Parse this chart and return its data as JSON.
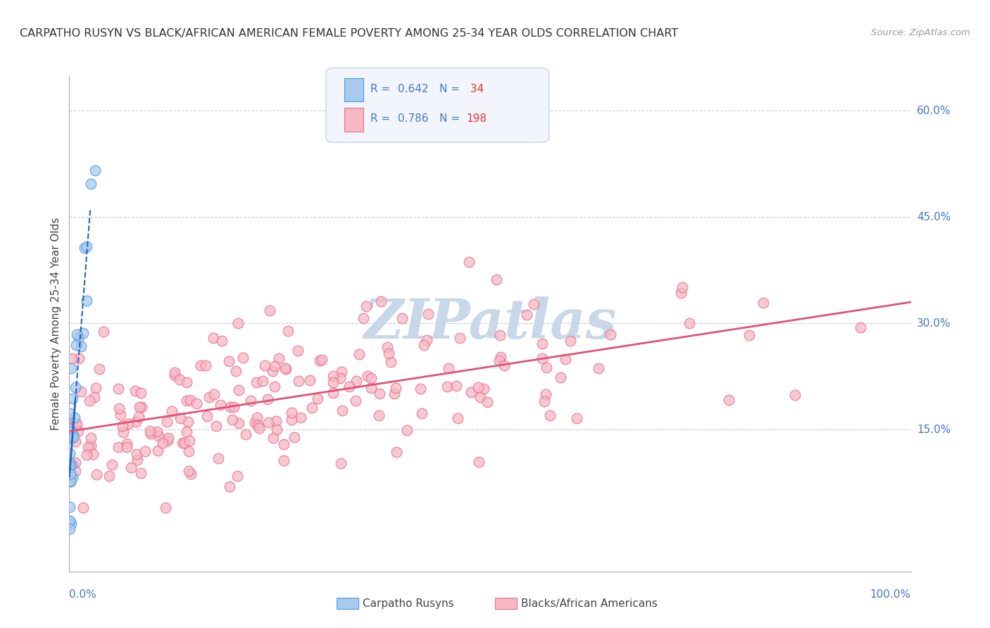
{
  "title": "CARPATHO RUSYN VS BLACK/AFRICAN AMERICAN FEMALE POVERTY AMONG 25-34 YEAR OLDS CORRELATION CHART",
  "source": "Source: ZipAtlas.com",
  "ylabel": "Female Poverty Among 25-34 Year Olds",
  "xlim": [
    0.0,
    1.0
  ],
  "ylim": [
    -0.05,
    0.65
  ],
  "ytick_positions": [
    0.15,
    0.3,
    0.45,
    0.6
  ],
  "ytick_labels": [
    "15.0%",
    "30.0%",
    "45.0%",
    "60.0%"
  ],
  "legend_blue_r": "0.642",
  "legend_blue_n": "34",
  "legend_pink_r": "0.786",
  "legend_pink_n": "198",
  "blue_fill": "#A8CAEE",
  "blue_edge": "#5599DD",
  "pink_fill": "#F7B8C4",
  "pink_edge": "#E87090",
  "blue_line_color": "#2266BB",
  "pink_line_color": "#DD5577",
  "watermark_text": "ZIPatlas",
  "watermark_color": "#C8D8E8",
  "legend_label_blue": "Carpatho Rusyns",
  "legend_label_pink": "Blacks/African Americans",
  "r_color": "#4477CC",
  "n_color": "#EE3333",
  "grid_color": "#CCCCCC",
  "title_color": "#333333",
  "source_color": "#999999",
  "axis_color": "#AAAAAA"
}
